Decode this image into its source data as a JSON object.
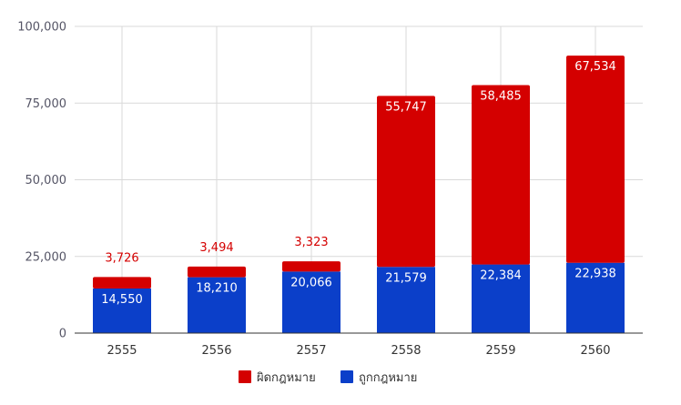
{
  "chart_data": {
    "type": "bar",
    "stacked": true,
    "categories": [
      "2555",
      "2556",
      "2557",
      "2558",
      "2559",
      "2560"
    ],
    "series": [
      {
        "name": "ถูกกฎหมาย",
        "color": "#0b3fc9",
        "values": [
          14550,
          18210,
          20066,
          21579,
          22384,
          22938
        ],
        "labels": [
          "14,550",
          "18,210",
          "20,066",
          "21,579",
          "22,384",
          "22,938"
        ]
      },
      {
        "name": "ผิดกฎหมาย",
        "color": "#d40000",
        "values": [
          3726,
          3494,
          3323,
          55747,
          58485,
          67534
        ],
        "labels": [
          "3,726",
          "3,494",
          "3,323",
          "55,747",
          "58,485",
          "67,534"
        ]
      }
    ],
    "legend_order": [
      1,
      0
    ],
    "ylim": [
      0,
      100000
    ],
    "yticks": [
      0,
      25000,
      50000,
      75000,
      100000
    ],
    "ytick_labels": [
      "0",
      "25,000",
      "50,000",
      "75,000",
      "100,000"
    ],
    "grid": true,
    "legend_position": "bottom",
    "title": "",
    "xlabel": "",
    "ylabel": ""
  }
}
